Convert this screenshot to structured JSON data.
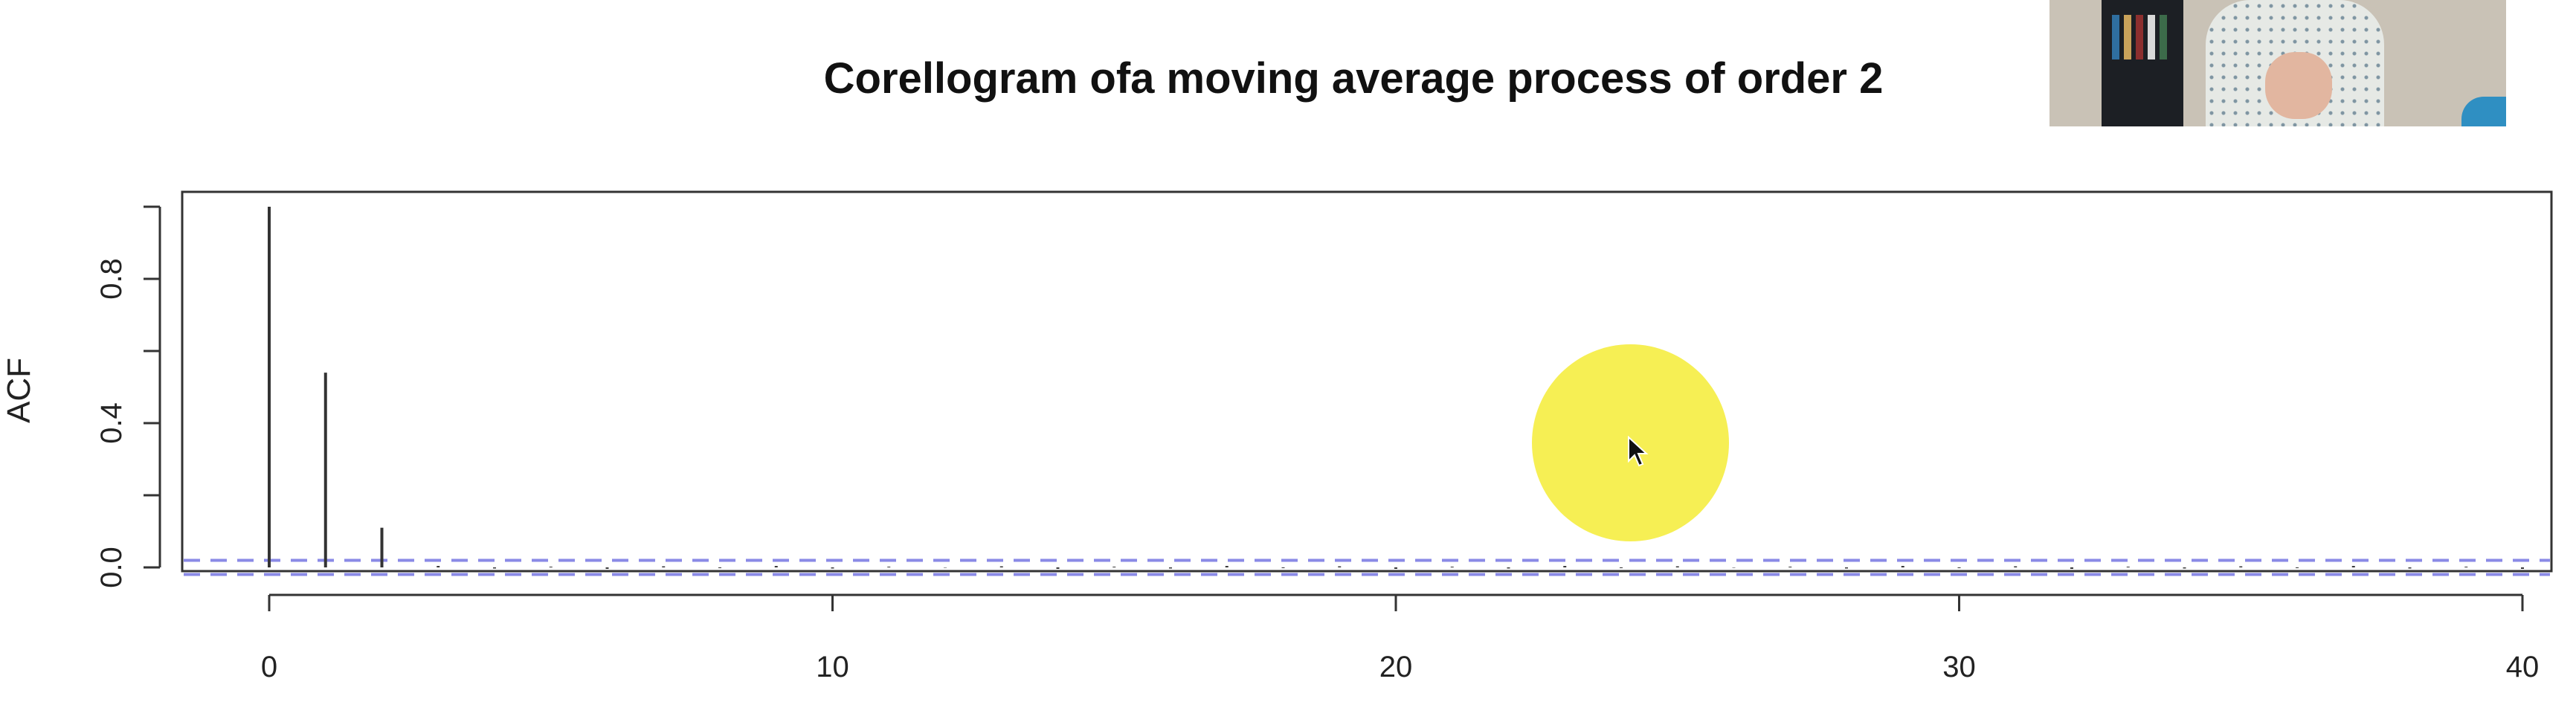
{
  "chart_data": {
    "type": "bar",
    "title": "Corellogram ofa moving average process of order 2",
    "xlabel": "",
    "ylabel": "ACF",
    "xlim": [
      -1.5,
      40.6
    ],
    "ylim": [
      -0.03,
      1.01
    ],
    "x": [
      0,
      1,
      2,
      3,
      4,
      5,
      6,
      7,
      8,
      9,
      10,
      11,
      12,
      13,
      14,
      15,
      16,
      17,
      18,
      19,
      20,
      21,
      22,
      23,
      24,
      25,
      26,
      27,
      28,
      29,
      30,
      31,
      32,
      33,
      34,
      35,
      36,
      37,
      38,
      39,
      40
    ],
    "values": [
      1.0,
      0.54,
      0.11,
      0.004,
      -0.003,
      0.002,
      -0.004,
      0.003,
      -0.002,
      0.004,
      -0.003,
      0.002,
      -0.001,
      0.003,
      -0.004,
      0.002,
      -0.003,
      0.004,
      -0.002,
      0.003,
      -0.004,
      0.002,
      -0.003,
      0.004,
      -0.002,
      0.003,
      -0.001,
      0.002,
      -0.003,
      0.004,
      -0.002,
      0.003,
      -0.004,
      0.002,
      -0.003,
      0.003,
      -0.002,
      0.004,
      -0.003,
      0.002,
      -0.004
    ],
    "confidence_band": [
      -0.0196,
      0.0196
    ],
    "x_ticks": [
      0,
      10,
      20,
      30,
      40
    ],
    "x_tick_labels": [
      "0",
      "10",
      "20",
      "30",
      "40"
    ],
    "y_ticks_minor": [
      0.0,
      0.2,
      0.4,
      0.6,
      0.8,
      1.0
    ],
    "y_ticks_labeled": [
      0.0,
      0.4,
      0.8
    ],
    "y_tick_labels": [
      "0.0",
      "0.4",
      "0.8"
    ],
    "grid": false,
    "legend": "none",
    "colors": {
      "bars": "#333333",
      "confidence_band": "#8a8ae6",
      "axis": "#333333"
    }
  },
  "overlay": {
    "webcam": "webcam-video",
    "cursor_highlight_color": "#f6ef54",
    "cursor_icon": "arrow-cursor-icon"
  }
}
